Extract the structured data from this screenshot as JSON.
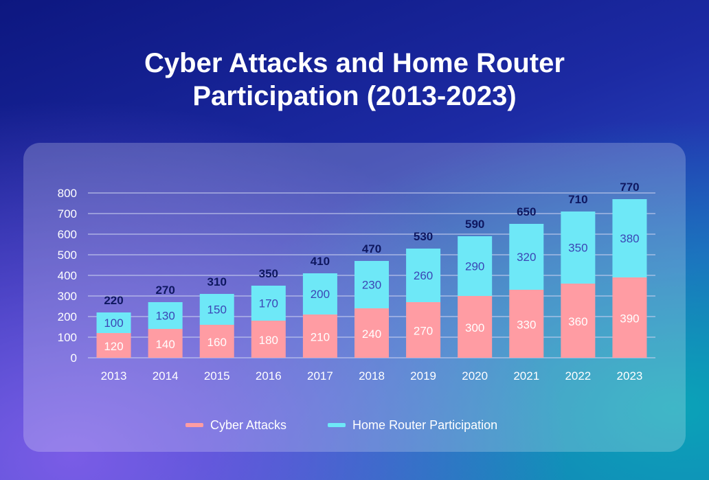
{
  "title_line1": "Cyber Attacks and Home Router",
  "title_line2": "Participation (2013-2023)",
  "colors": {
    "attacks": "#ff9ca3",
    "router": "#6ee8f7",
    "total_label": "#0e1760",
    "router_label": "#3b45b5",
    "grid": "#c9d0ef"
  },
  "chart_data": {
    "type": "bar",
    "stacked": true,
    "title": "Cyber Attacks and Home Router Participation (2013-2023)",
    "categories": [
      "2013",
      "2014",
      "2015",
      "2016",
      "2017",
      "2018",
      "2019",
      "2020",
      "2021",
      "2022",
      "2023"
    ],
    "series": [
      {
        "name": "Cyber Attacks",
        "values": [
          120,
          140,
          160,
          180,
          210,
          240,
          270,
          300,
          330,
          360,
          390
        ]
      },
      {
        "name": "Home Router Participation",
        "values": [
          100,
          130,
          150,
          170,
          200,
          230,
          260,
          290,
          320,
          350,
          380
        ]
      }
    ],
    "totals": [
      220,
      270,
      310,
      350,
      410,
      470,
      530,
      590,
      650,
      710,
      770
    ],
    "yticks": [
      0,
      100,
      200,
      300,
      400,
      500,
      600,
      700,
      800
    ],
    "ylim": [
      0,
      800
    ],
    "grid": true,
    "legend_position": "bottom"
  }
}
